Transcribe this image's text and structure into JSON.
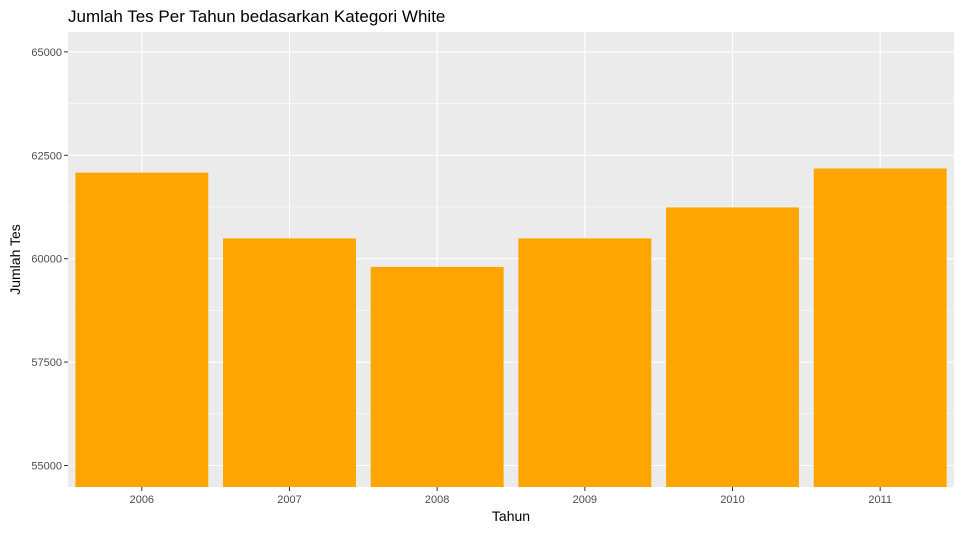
{
  "chart_data": {
    "type": "bar",
    "title": "Jumlah Tes Per Tahun bedasarkan Kategori White",
    "xlabel": "Tahun",
    "ylabel": "Jumlah Tes",
    "categories": [
      "2006",
      "2007",
      "2008",
      "2009",
      "2010",
      "2011"
    ],
    "values": [
      62080,
      60490,
      59800,
      60490,
      61240,
      62180
    ],
    "ylim": [
      54480,
      65480
    ],
    "yticks": [
      55000,
      57500,
      60000,
      62500,
      65000
    ],
    "ytick_labels": [
      "55000",
      "57500",
      "60000",
      "62500",
      "65000"
    ],
    "grid": true,
    "legend": "none",
    "colors": {
      "bar": "#FFA500",
      "panel_background": "#EBEBEB",
      "grid_major": "#FFFFFF",
      "tick_text": "#4D4D4D",
      "tick_mark": "#333333",
      "text": "#000000"
    }
  }
}
